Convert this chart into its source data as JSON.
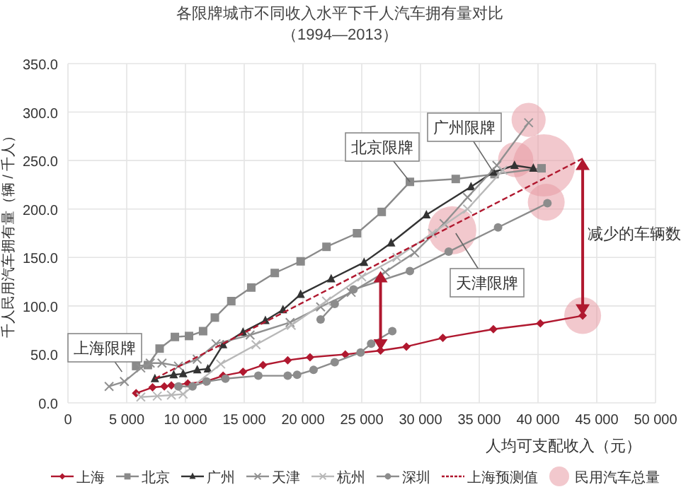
{
  "chart_data": {
    "type": "line",
    "title": "各限牌城市不同收入水平下千人汽车拥有量对比",
    "subtitle": "（1994—2013）",
    "xlabel": "人均可支配收入（元）",
    "ylabel": "千人民用汽车拥有量（辆 / 千人）",
    "xlim": [
      0,
      50000
    ],
    "xticks": [
      0,
      {
        "value": 5000,
        "label": "5 000"
      },
      {
        "value": 10000,
        "label": "10 000"
      },
      {
        "value": 15000,
        "label": "15 000"
      },
      {
        "value": 20000,
        "label": "20 000"
      },
      {
        "value": 25000,
        "label": "25 000"
      },
      {
        "value": 30000,
        "label": "30 000"
      },
      {
        "value": 35000,
        "label": "35 000"
      },
      {
        "value": 40000,
        "label": "40 000"
      },
      {
        "value": 45000,
        "label": "45 000"
      },
      {
        "value": 50000,
        "label": "50 000"
      }
    ],
    "ylim": [
      0,
      350
    ],
    "yticks": [
      {
        "value": 0,
        "label": "0.0"
      },
      {
        "value": 50,
        "label": "50.0"
      },
      {
        "value": 100,
        "label": "100.0"
      },
      {
        "value": 150,
        "label": "150.0"
      },
      {
        "value": 200,
        "label": "200.0"
      },
      {
        "value": 250,
        "label": "250.0"
      },
      {
        "value": 300,
        "label": "300.0"
      },
      {
        "value": 350,
        "label": "350.0"
      }
    ],
    "grid": true,
    "legend": "bottom",
    "series": [
      {
        "name": "上海",
        "type": "line",
        "color": "#b0182f",
        "marker": "diamond",
        "x": [
          5800,
          7200,
          8200,
          8800,
          10200,
          11700,
          13200,
          14900,
          16600,
          18700,
          20600,
          23600,
          26600,
          28800,
          31900,
          36200,
          40200,
          43800
        ],
        "values": [
          10,
          16,
          17,
          18,
          20,
          22,
          28,
          32,
          39,
          44,
          47,
          50,
          54,
          58,
          67,
          76,
          82,
          90
        ]
      },
      {
        "name": "北京",
        "type": "line",
        "color": "#8a8a8a",
        "marker": "square",
        "x": [
          5800,
          6800,
          7800,
          9100,
          10300,
          11500,
          12500,
          13900,
          15600,
          17600,
          19800,
          22000,
          24600,
          26700,
          29100,
          33000,
          36300,
          40300
        ],
        "values": [
          38,
          39,
          56,
          68,
          69,
          74,
          88,
          105,
          119,
          134,
          146,
          161,
          175,
          197,
          228,
          231,
          236,
          242
        ]
      },
      {
        "name": "广州",
        "type": "line",
        "color": "#333333",
        "marker": "triangle",
        "x": [
          7400,
          9000,
          9800,
          11000,
          11900,
          13200,
          14900,
          16800,
          18300,
          19800,
          22400,
          25200,
          27500,
          30500,
          34300,
          36200,
          38000,
          39600
        ],
        "values": [
          25,
          29,
          30,
          34,
          35,
          60,
          73,
          85,
          96,
          112,
          128,
          145,
          165,
          194,
          223,
          238,
          245,
          242
        ]
      },
      {
        "name": "天津",
        "type": "line",
        "color": "#909090",
        "marker": "cross",
        "x": [
          3500,
          4800,
          6200,
          7000,
          8000,
          9400,
          11000,
          12600,
          15500,
          18900,
          21500,
          24100,
          27000,
          29500,
          32000,
          34000,
          36500,
          39200
        ],
        "values": [
          17,
          22,
          36,
          41,
          41,
          38,
          45,
          61,
          70,
          83,
          99,
          114,
          135,
          155,
          185,
          212,
          245,
          289
        ]
      },
      {
        "name": "杭州",
        "type": "line",
        "color": "#b8b8b8",
        "marker": "cross",
        "x": [
          6200,
          7600,
          8800,
          9800,
          13000,
          16000,
          19000,
          22000,
          25000,
          28000,
          31000,
          34000,
          37000
        ],
        "values": [
          6,
          7,
          8,
          9,
          40,
          60,
          80,
          105,
          130,
          150,
          175,
          200,
          240
        ]
      },
      {
        "name": "深圳",
        "type": "line",
        "color": "#8c8c8c",
        "marker": "circle",
        "x": [
          9400,
          10600,
          11800,
          13400,
          16200,
          18700,
          19500,
          20900,
          22700,
          24900,
          25800,
          27600,
          null,
          21500,
          22700,
          24300,
          29100,
          32400,
          36600,
          40800
        ],
        "values": [
          17,
          17,
          22,
          25,
          28,
          28,
          29,
          34,
          42,
          52,
          61,
          74,
          null,
          86,
          102,
          117,
          136,
          156,
          181,
          206
        ]
      },
      {
        "name": "上海预测值",
        "type": "line",
        "color": "#b0182f",
        "marker": "none",
        "line_style": "dashed",
        "x": [
          7400,
          43800
        ],
        "values": [
          25,
          252
        ]
      },
      {
        "name": "民用汽车总量",
        "type": "bubble",
        "color": "#e79aa4",
        "x": [
          38100,
          39200,
          40500,
          40700,
          32700,
          43800
        ],
        "values": [
          251,
          292,
          245,
          207,
          178,
          90
        ],
        "sizes": [
          0.32,
          0.3,
          1,
          0.35,
          0.6,
          0.35
        ]
      }
    ],
    "annotations": [
      {
        "text": "上海限牌",
        "x": 4600,
        "y": 32
      },
      {
        "text": "北京限牌",
        "x": 29100,
        "y": 228
      },
      {
        "text": "广州限牌",
        "x": 36200,
        "y": 238
      },
      {
        "text": "天津限牌",
        "x": 33000,
        "y": 175
      },
      "减少的车辆数"
    ]
  }
}
